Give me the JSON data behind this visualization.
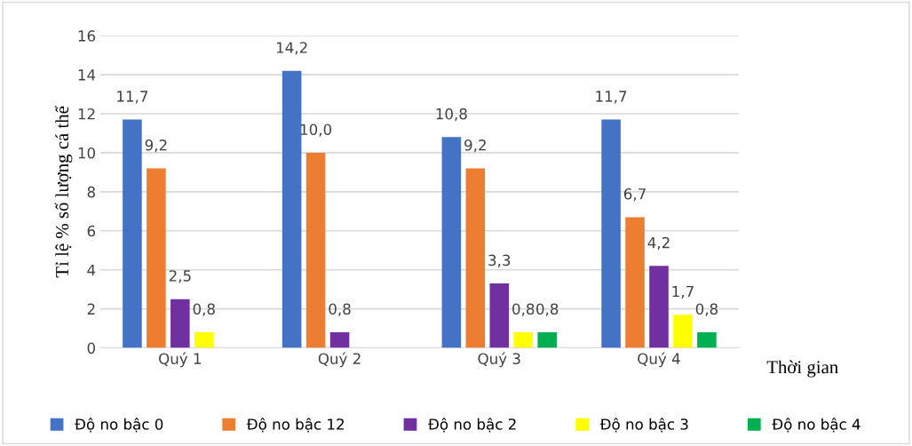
{
  "chart_data": {
    "type": "bar",
    "xlabel": "Thời gian",
    "ylabel": "Tỉ lệ % số lượng cá thể",
    "categories": [
      "Quý 1",
      "Quý 2",
      "Quý 3",
      "Quý 4"
    ],
    "series": [
      {
        "name": "Độ no bậc 0",
        "color": "#4472c4",
        "values": [
          11.7,
          14.2,
          10.8,
          11.7
        ],
        "value_labels": [
          "11,7",
          "14,2",
          "10,8",
          "11,7"
        ]
      },
      {
        "name": "Độ no bậc 12",
        "color": "#ed7d31",
        "values": [
          9.2,
          10.0,
          9.2,
          6.7
        ],
        "value_labels": [
          "9,2",
          "10,0",
          "9,2",
          "6,7"
        ]
      },
      {
        "name": "Độ no bậc 2",
        "color": "#7030a0",
        "values": [
          2.5,
          0.8,
          3.3,
          4.2
        ],
        "value_labels": [
          "2,5",
          "0,8",
          "3,3",
          "4,2"
        ]
      },
      {
        "name": "Độ no bậc 3",
        "color": "#ffff00",
        "values": [
          0.8,
          null,
          0.8,
          1.7
        ],
        "value_labels": [
          "0,8",
          null,
          "0,8",
          "1,7"
        ]
      },
      {
        "name": "Độ no bậc 4",
        "color": "#00b050",
        "values": [
          null,
          null,
          0.8,
          0.8
        ],
        "value_labels": [
          null,
          null,
          "0,8",
          "0,8"
        ]
      }
    ],
    "ylim": [
      0,
      16
    ],
    "yticks": [
      0,
      2,
      4,
      6,
      8,
      10,
      12,
      14,
      16
    ],
    "grid": "y",
    "legend": "bottom"
  }
}
